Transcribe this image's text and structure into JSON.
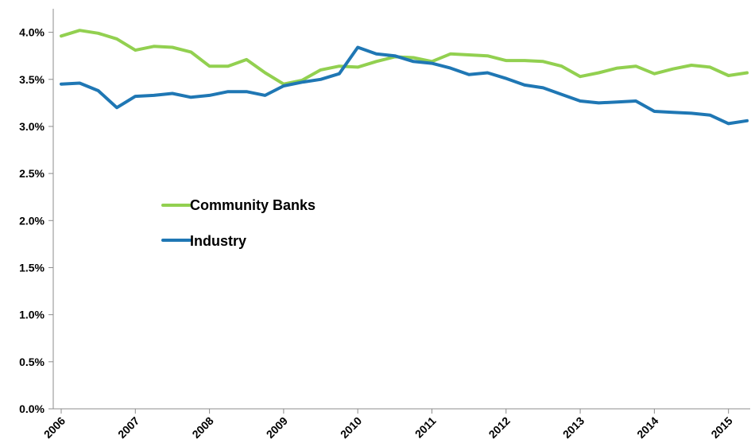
{
  "chart_data": {
    "type": "line",
    "title": "",
    "xlabel": "",
    "ylabel": "",
    "ylim": [
      0,
      4.25
    ],
    "y_ticks": [
      "0.0%",
      "0.5%",
      "1.0%",
      "1.5%",
      "2.0%",
      "2.5%",
      "3.0%",
      "3.5%",
      "4.0%"
    ],
    "x_ticks": [
      "2006",
      "2007",
      "2008",
      "2009",
      "2010",
      "2011",
      "2012",
      "2013",
      "2014",
      "2015"
    ],
    "x_tick_note": "quarterly observations, 2006 Q1 to 2015 Q2",
    "categories": [
      "2006 Q1",
      "2006 Q2",
      "2006 Q3",
      "2006 Q4",
      "2007 Q1",
      "2007 Q2",
      "2007 Q3",
      "2007 Q4",
      "2008 Q1",
      "2008 Q2",
      "2008 Q3",
      "2008 Q4",
      "2009 Q1",
      "2009 Q2",
      "2009 Q3",
      "2009 Q4",
      "2010 Q1",
      "2010 Q2",
      "2010 Q3",
      "2010 Q4",
      "2011 Q1",
      "2011 Q2",
      "2011 Q3",
      "2011 Q4",
      "2012 Q1",
      "2012 Q2",
      "2012 Q3",
      "2012 Q4",
      "2013 Q1",
      "2013 Q2",
      "2013 Q3",
      "2013 Q4",
      "2014 Q1",
      "2014 Q2",
      "2014 Q3",
      "2014 Q4",
      "2015 Q1",
      "2015 Q2"
    ],
    "series": [
      {
        "name": "Community Banks",
        "color": "#92d050",
        "values": [
          3.96,
          4.02,
          3.99,
          3.93,
          3.81,
          3.85,
          3.84,
          3.79,
          3.64,
          3.64,
          3.71,
          3.57,
          3.45,
          3.49,
          3.6,
          3.64,
          3.63,
          3.69,
          3.74,
          3.73,
          3.69,
          3.77,
          3.76,
          3.75,
          3.7,
          3.7,
          3.69,
          3.64,
          3.53,
          3.57,
          3.62,
          3.64,
          3.56,
          3.61,
          3.65,
          3.63,
          3.54,
          3.57
        ]
      },
      {
        "name": "Industry",
        "color": "#1f77b4",
        "values": [
          3.45,
          3.46,
          3.38,
          3.2,
          3.32,
          3.33,
          3.35,
          3.31,
          3.33,
          3.37,
          3.37,
          3.33,
          3.43,
          3.47,
          3.5,
          3.56,
          3.84,
          3.77,
          3.75,
          3.69,
          3.67,
          3.62,
          3.55,
          3.57,
          3.51,
          3.44,
          3.41,
          3.34,
          3.27,
          3.25,
          3.26,
          3.27,
          3.16,
          3.15,
          3.14,
          3.12,
          3.03,
          3.06
        ]
      }
    ],
    "grid": false,
    "legend_position": "center-left"
  }
}
